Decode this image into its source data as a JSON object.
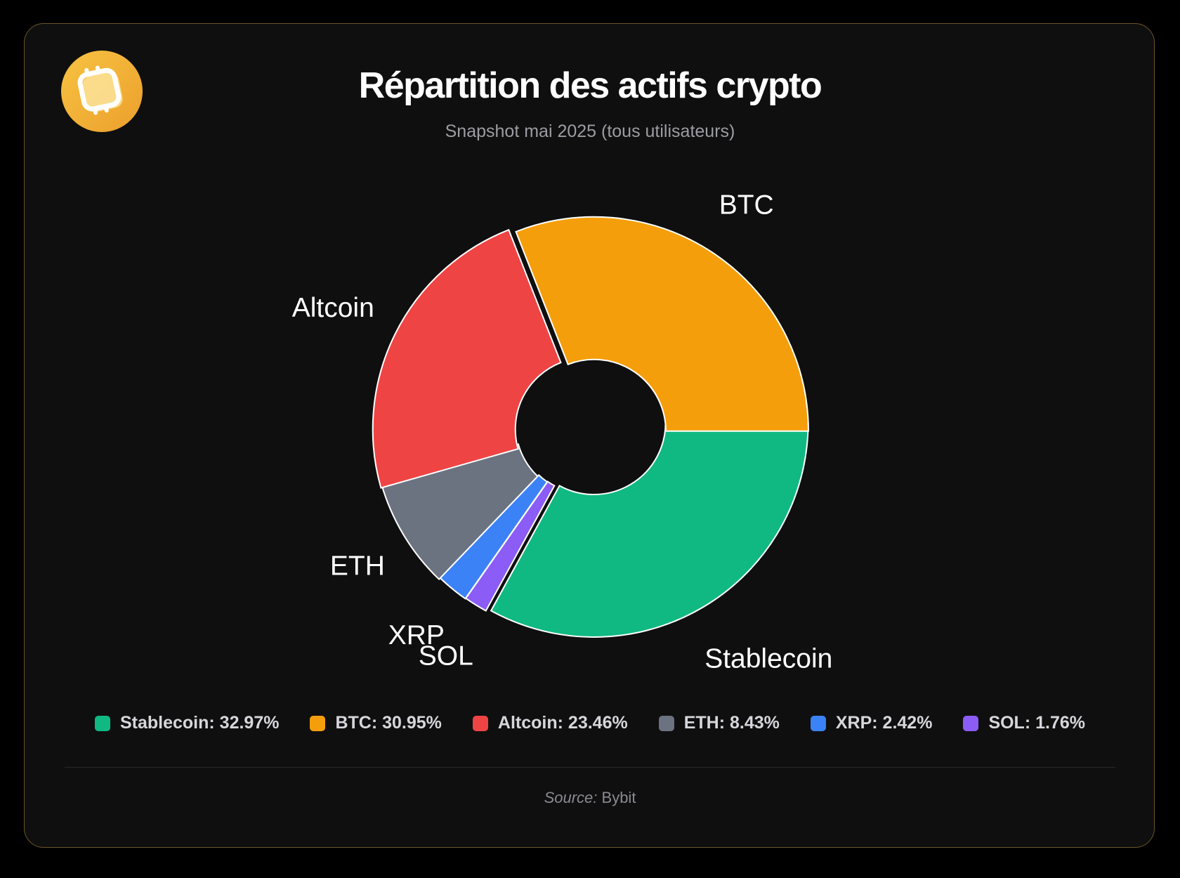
{
  "header": {
    "title": "Répartition des actifs crypto",
    "subtitle": "Snapshot mai 2025 (tous utilisateurs)",
    "logo_icon": "bybit-logo-icon"
  },
  "footer": {
    "source_label": "Source:",
    "source_value": "Bybit"
  },
  "chart_data": {
    "type": "pie",
    "style": "donut",
    "title": "Répartition des actifs crypto",
    "subtitle": "Snapshot mai 2025 (tous utilisateurs)",
    "unit": "%",
    "legend_position": "bottom",
    "slices": [
      {
        "name": "Stablecoin",
        "value": 32.97,
        "color": "#10b981",
        "legend": "Stablecoin: 32.97%"
      },
      {
        "name": "SOL",
        "value": 1.76,
        "color": "#8b5cf6",
        "legend": "SOL: 1.76%"
      },
      {
        "name": "XRP",
        "value": 2.42,
        "color": "#3b82f6",
        "legend": "XRP: 2.42%"
      },
      {
        "name": "ETH",
        "value": 8.43,
        "color": "#6b7280",
        "legend": "ETH: 8.43%"
      },
      {
        "name": "Altcoin",
        "value": 23.46,
        "color": "#ef4444",
        "legend": "Altcoin: 23.46%"
      },
      {
        "name": "BTC",
        "value": 30.95,
        "color": "#f59e0b",
        "legend": "BTC: 30.95%"
      }
    ],
    "legend_order": [
      "Stablecoin",
      "BTC",
      "Altcoin",
      "ETH",
      "XRP",
      "SOL"
    ]
  }
}
